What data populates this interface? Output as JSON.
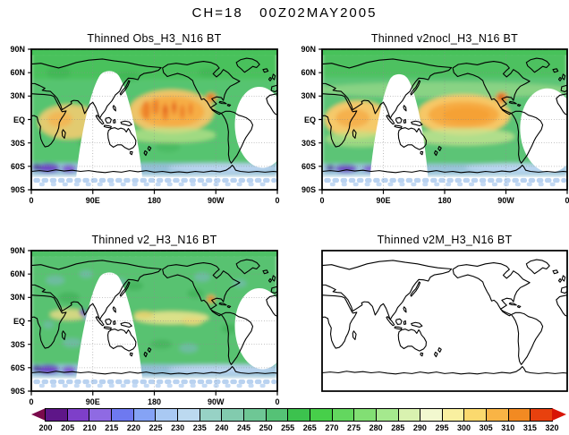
{
  "title": "CH=18   00Z02MAY2005",
  "panels": [
    {
      "id": "obs",
      "title": "Thinned Obs_H3_N16 BT"
    },
    {
      "id": "v2nocl",
      "title": "Thinned v2nocl_H3_N16 BT"
    },
    {
      "id": "v2",
      "title": "Thinned v2_H3_N16 BT"
    },
    {
      "id": "v2m",
      "title": "Thinned v2M_H3_N16 BT"
    }
  ],
  "axes": {
    "lat": [
      "90N",
      "60N",
      "30N",
      "EQ",
      "30S",
      "60S",
      "90S"
    ],
    "lon": [
      "0",
      "90E",
      "180",
      "90W",
      "0"
    ]
  },
  "colorbar": {
    "labels": [
      "200",
      "205",
      "210",
      "215",
      "220",
      "225",
      "230",
      "235",
      "240",
      "245",
      "250",
      "255",
      "265",
      "270",
      "275",
      "280",
      "285",
      "290",
      "295",
      "300",
      "305",
      "310",
      "315",
      "320"
    ],
    "segment_colors": [
      "#5e1688",
      "#7e3fc9",
      "#8f6ae3",
      "#6e79f0",
      "#85a3f5",
      "#a9c9f3",
      "#bcd9f0",
      "#97d2c5",
      "#82cbae",
      "#6ec795",
      "#55c276",
      "#3cc24e",
      "#47cf4a",
      "#63d75f",
      "#82df74",
      "#a5e98e",
      "#d9f2b0",
      "#f2f8cf",
      "#f9f0a0",
      "#fbd96e",
      "#f9b445",
      "#f28a22",
      "#e8410e"
    ],
    "left_arrow_color": "#7a0a4c",
    "right_arrow_color": "#d81505"
  },
  "chart_data": {
    "type": "heatmap",
    "title": "CH=18   00Z02MAY2005",
    "variable": "Brightness Temperature (K), AMSU channel 18, NOAA-16, thinned data",
    "projection": "equirectangular world map, longitude 0E-360E left to right, latitude 90N top to 90S bottom",
    "lat_tick_labels": [
      "90N",
      "60N",
      "30N",
      "EQ",
      "30S",
      "60S",
      "90S"
    ],
    "lon_tick_labels": [
      "0",
      "90E",
      "180",
      "90W",
      "0"
    ],
    "colorbar_range_K": [
      200,
      320
    ],
    "colorbar_tick_labels": [
      200,
      205,
      210,
      215,
      220,
      225,
      230,
      235,
      240,
      245,
      250,
      255,
      265,
      270,
      275,
      280,
      285,
      290,
      295,
      300,
      305,
      310,
      315,
      320
    ],
    "colorbar_note": "rainbow scale purple(200)-blue-green-yellow-orange-red(320); 260 tick label absent; triangular out-of-range arrows at both ends",
    "legend_position": "horizontal colorbar at bottom",
    "grid": "dotted graticule every 30 deg lat / 90 deg lon on shaded panels",
    "panels": [
      {
        "title": "Thinned Obs_H3_N16 BT",
        "field": "observed BT: greens ~250-285K over most oceans/land, streaky orange maxima ~295-315K across tropical Pacific (150E-100W) and Indian Ocean/Africa, orange-red spot near Mexico, blue/purple 200-235K along Antarctic coast, scattered pale-blue dots near 90S, white data-gap swaths ~80E-165E and western South Atlantic (~60W-0)"
      },
      {
        "title": "Thinned v2nocl_H3_N16 BT",
        "field": "simulated BT (no cloud): smooth version of observations, broad uniform orange ~295-305K tropical band over Pacific and Indian Ocean, strong orange patch near Mexico, greens elsewhere, blue/purple Antarctic coast, same white swath gaps"
      },
      {
        "title": "Thinned v2_H3_N16 BT",
        "field": "simulated BT: mottled greens ~250-280K with bluish patches, only faint yellow streaks ~290K in tropical Pacific, small orange patch near Central America, small purple spot near India, blue/purple Antarctic coast, same white swath gaps"
      },
      {
        "title": "Thinned v2M_H3_N16 BT",
        "field": "no data plotted - blank white map with coastlines only, no axis tick labels"
      }
    ]
  }
}
